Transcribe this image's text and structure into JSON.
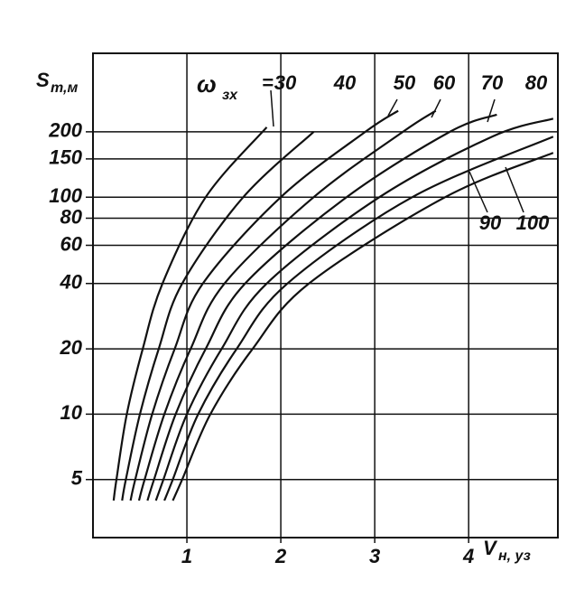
{
  "chart_data": {
    "type": "line",
    "y_label": "S",
    "y_label_sub": "т,м",
    "x_label": "V",
    "x_label_sub": "н, уз",
    "legend_symbol": "ω",
    "legend_symbol_sub": "зх",
    "legend_eq": "=",
    "xlim": [
      0,
      4.95
    ],
    "xticks": [
      1,
      2,
      3,
      4
    ],
    "ylim": [
      2.7,
      460
    ],
    "yticks": [
      5,
      10,
      20,
      40,
      60,
      80,
      100,
      150,
      200
    ],
    "log_y": true,
    "grid": true,
    "color": "#111",
    "series": [
      {
        "name": "30",
        "x": [
          0.22,
          0.25,
          0.36,
          0.53,
          0.74,
          1.2,
          1.85
        ],
        "values": [
          4,
          5,
          10,
          20,
          40,
          100,
          210
        ]
      },
      {
        "name": "40",
        "x": [
          0.31,
          0.35,
          0.5,
          0.7,
          0.95,
          1.6,
          2.35
        ],
        "values": [
          4,
          5,
          10,
          20,
          40,
          100,
          200
        ]
      },
      {
        "name": "50",
        "x": [
          0.4,
          0.45,
          0.63,
          0.87,
          1.17,
          2.0,
          2.9,
          3.25
        ],
        "values": [
          4,
          5,
          10,
          20,
          40,
          100,
          200,
          250
        ]
      },
      {
        "name": "60",
        "x": [
          0.49,
          0.55,
          0.76,
          1.04,
          1.4,
          2.35,
          3.3,
          3.65
        ],
        "values": [
          4,
          5,
          10,
          20,
          40,
          100,
          200,
          250
        ]
      },
      {
        "name": "70",
        "x": [
          0.58,
          0.65,
          0.88,
          1.2,
          1.62,
          2.7,
          3.8,
          4.3
        ],
        "values": [
          4,
          5,
          10,
          20,
          40,
          100,
          200,
          240
        ]
      },
      {
        "name": "80",
        "x": [
          0.67,
          0.75,
          1.0,
          1.37,
          1.85,
          3.05,
          4.25,
          4.9
        ],
        "values": [
          4,
          5,
          10,
          20,
          40,
          100,
          190,
          230
        ]
      },
      {
        "name": "90",
        "x": [
          0.76,
          0.85,
          1.12,
          1.53,
          2.07,
          3.4,
          4.9
        ],
        "values": [
          4,
          5,
          10,
          20,
          40,
          100,
          190
        ]
      },
      {
        "name": "100",
        "x": [
          0.85,
          0.95,
          1.25,
          1.7,
          2.3,
          3.75,
          4.9
        ],
        "values": [
          4,
          5,
          10,
          20,
          40,
          100,
          160
        ]
      }
    ]
  }
}
